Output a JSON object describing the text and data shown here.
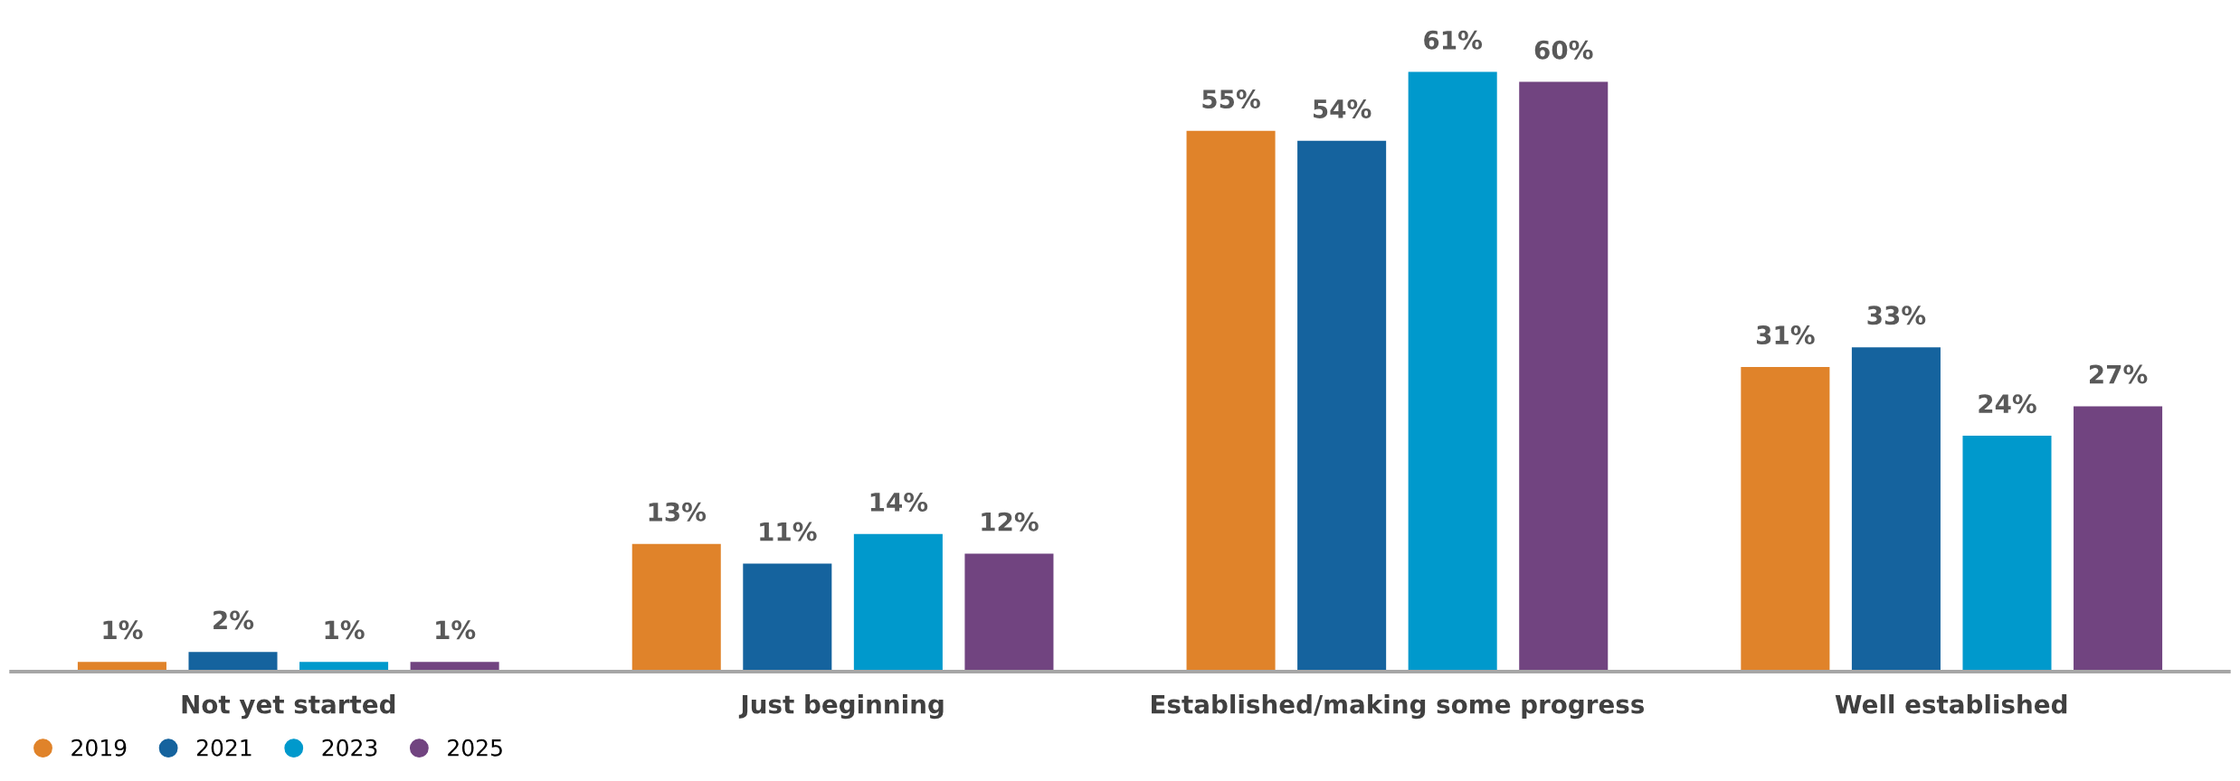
{
  "chart_data": {
    "type": "bar",
    "categories": [
      "Not yet started",
      "Just beginning",
      "Established/making some progress",
      "Well established"
    ],
    "series": [
      {
        "name": "2019",
        "color": "#e0832a",
        "values": [
          1,
          13,
          55,
          31
        ],
        "value_labels": [
          "1%",
          "13%",
          "55%",
          "31%"
        ]
      },
      {
        "name": "2021",
        "color": "#15639e",
        "values": [
          2,
          11,
          54,
          33
        ],
        "value_labels": [
          "2%",
          "11%",
          "54%",
          "33%"
        ]
      },
      {
        "name": "2023",
        "color": "#0099cc",
        "values": [
          1,
          14,
          61,
          24
        ],
        "value_labels": [
          "1%",
          "14%",
          "61%",
          "24%"
        ]
      },
      {
        "name": "2025",
        "color": "#714480",
        "values": [
          1,
          12,
          60,
          27
        ],
        "value_labels": [
          "1%",
          "12%",
          "60%",
          "27%"
        ]
      }
    ],
    "legend": "bottom left",
    "grid": false
  }
}
